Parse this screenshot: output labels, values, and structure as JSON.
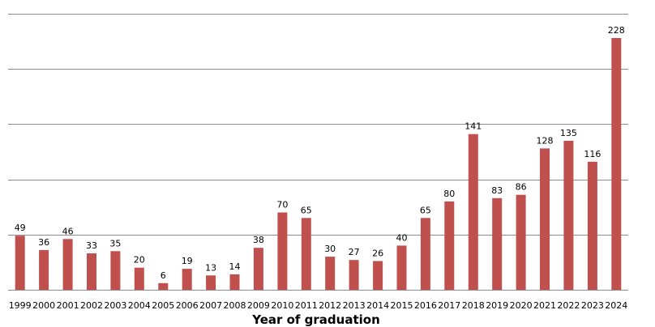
{
  "chart_data": {
    "type": "bar",
    "title": "",
    "xlabel": "Year of graduation",
    "ylabel": "",
    "categories": [
      "1999",
      "2000",
      "2001",
      "2002",
      "2003",
      "2004",
      "2005",
      "2006",
      "2007",
      "2008",
      "2009",
      "2010",
      "2011",
      "2012",
      "2013",
      "2014",
      "2015",
      "2016",
      "2017",
      "2018",
      "2019",
      "2020",
      "2021",
      "2022",
      "2023",
      "2024"
    ],
    "values": [
      49,
      36,
      46,
      33,
      35,
      20,
      6,
      19,
      13,
      14,
      38,
      70,
      65,
      30,
      27,
      26,
      40,
      65,
      80,
      141,
      83,
      86,
      128,
      135,
      116,
      228
    ],
    "ylim": [
      0,
      250
    ],
    "gridline_step": 50,
    "y_tick_labels_shown": false,
    "data_labels_shown": true,
    "legend": "none",
    "grid": true,
    "bar_color": "#c0504d"
  }
}
